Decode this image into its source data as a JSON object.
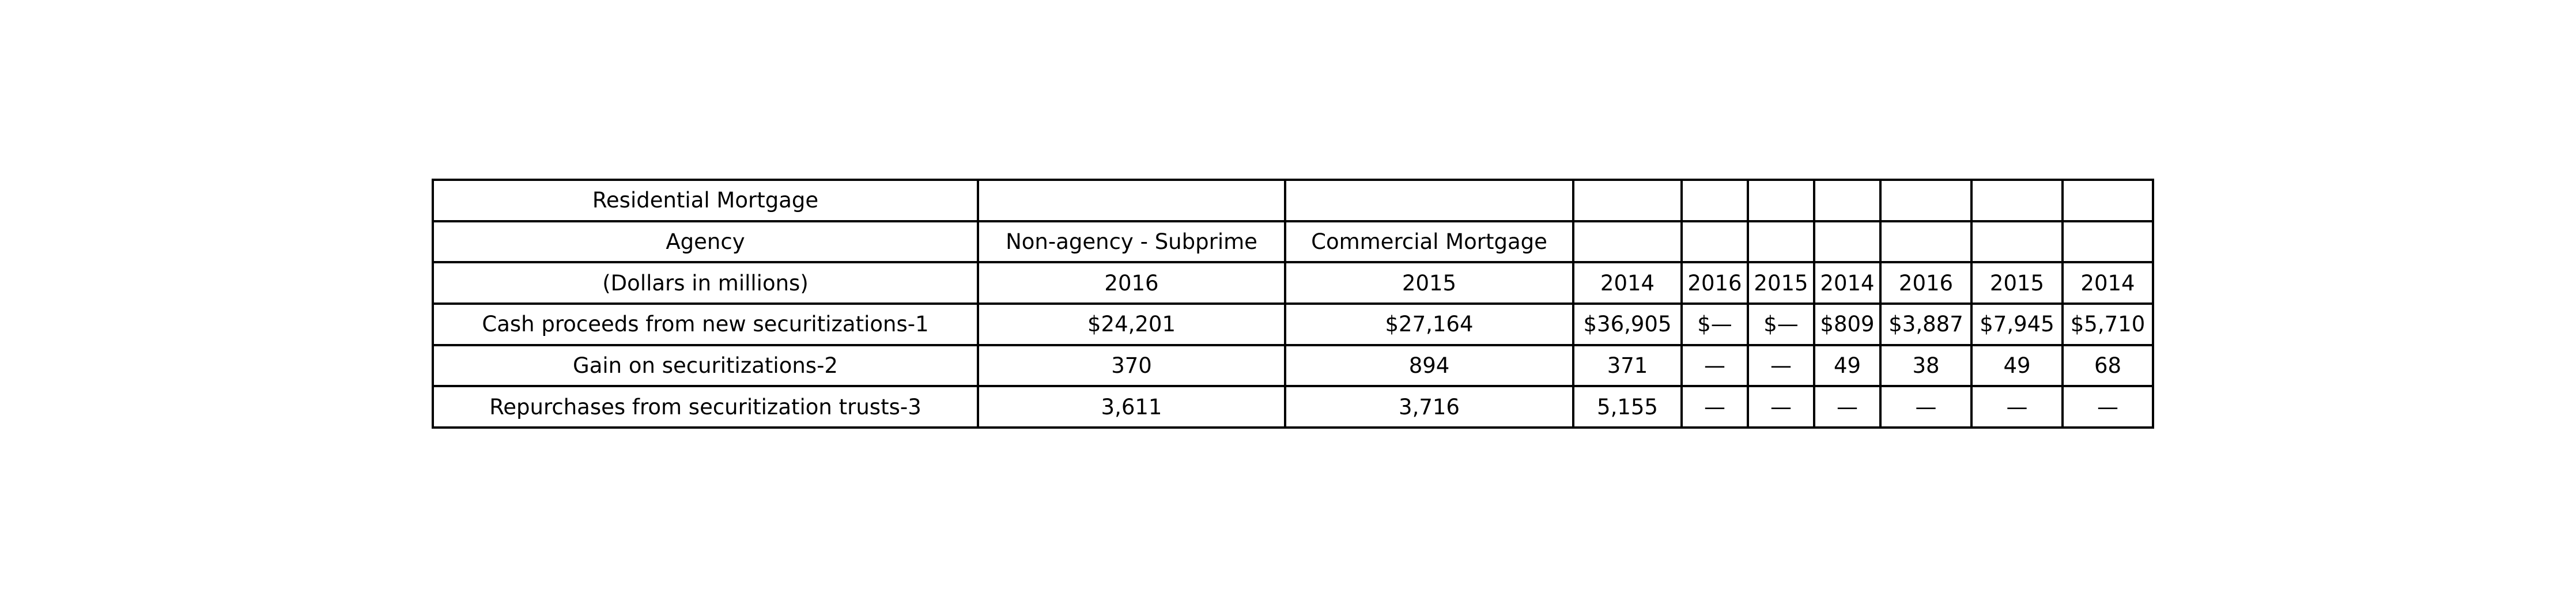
{
  "chart_data": {
    "type": "table",
    "rows": [
      [
        "Residential Mortgage",
        "",
        "",
        "",
        "",
        "",
        "",
        "",
        "",
        ""
      ],
      [
        "Agency",
        "Non-agency - Subprime",
        "Commercial Mortgage",
        "",
        "",
        "",
        "",
        "",
        "",
        ""
      ],
      [
        "(Dollars in millions)",
        "2016",
        "2015",
        "2014",
        "2016",
        "2015",
        "2014",
        "2016",
        "2015",
        "2014"
      ],
      [
        "Cash proceeds from new securitizations-1",
        "$24,201",
        "$27,164",
        "$36,905",
        "$—",
        "$—",
        "$809",
        "$3,887",
        "$7,945",
        "$5,710"
      ],
      [
        "Gain on securitizations-2",
        "370",
        "894",
        "371",
        "—",
        "—",
        "49",
        "38",
        "49",
        "68"
      ],
      [
        "Repurchases from securitization trusts-3",
        "3,611",
        "3,716",
        "5,155",
        "—",
        "—",
        "—",
        "—",
        "—",
        "—"
      ]
    ]
  }
}
